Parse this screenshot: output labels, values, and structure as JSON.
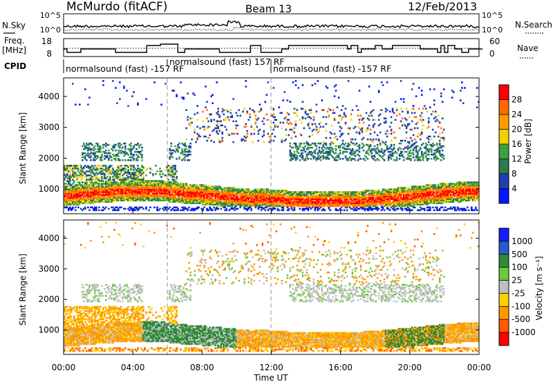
{
  "header": {
    "station": "McMurdo (fitACF)",
    "beam": "Beam 13",
    "date": "12/Feb/2013"
  },
  "top_panels": {
    "nsky_label": "N.Sky",
    "nsky_ticks": [
      "10^5",
      "10^0"
    ],
    "nsearch_label": "N.Search",
    "nsearch_ticks": [
      "10^5",
      "10^0"
    ],
    "freq_label": "Freq.",
    "freq_unit": "[MHz]",
    "freq_ticks": [
      "18",
      "8"
    ],
    "nave_label": "Nave",
    "nave_ticks": [
      "60",
      "0"
    ],
    "cpid_label": "CPID",
    "cpid_segments": [
      {
        "label": "normalsound (fast) -157 RF",
        "start_hour": 0
      },
      {
        "label": "normalsound (fast) 157 RF",
        "start_hour": 6
      },
      {
        "label": "normalsound (fast) -157 RF",
        "start_hour": 12
      }
    ]
  },
  "chart_data": [
    {
      "type": "heatmap",
      "name": "power",
      "ylabel": "Slant Range [km]",
      "ylim": [
        200,
        4600
      ],
      "yticks": [
        "1000",
        "2000",
        "3000",
        "4000"
      ],
      "xlim": [
        0,
        24
      ],
      "colorbar": {
        "label": "Power [dB]",
        "ticks": [
          "4",
          "8",
          "12",
          "16",
          "20",
          "24",
          "28"
        ],
        "colors": [
          "#0018ff",
          "#1f3fb0",
          "#2a7c50",
          "#3ea03e",
          "#f0d000",
          "#ff9a00",
          "#ff6a00",
          "#ff0000"
        ]
      }
    },
    {
      "type": "heatmap",
      "name": "velocity",
      "ylabel": "Slant Range [km]",
      "ylim": [
        200,
        4600
      ],
      "yticks": [
        "1000",
        "2000",
        "3000",
        "4000"
      ],
      "xlim": [
        0,
        24
      ],
      "xlabel": "Time UT",
      "xticks": [
        "00:00",
        "04:00",
        "08:00",
        "12:00",
        "16:00",
        "20:00",
        "00:00"
      ],
      "colorbar": {
        "label": "Velocity [m s⁻¹]",
        "ticks": [
          "1000",
          "500",
          "100",
          "25",
          "-25",
          "-100",
          "-500",
          "-1000"
        ],
        "colors": [
          "#1a1aff",
          "#2a5ac8",
          "#2e8b3a",
          "#6acb3a",
          "#bfbfbf",
          "#ffd000",
          "#ff9800",
          "#ff5a00",
          "#ff0000"
        ]
      }
    }
  ]
}
